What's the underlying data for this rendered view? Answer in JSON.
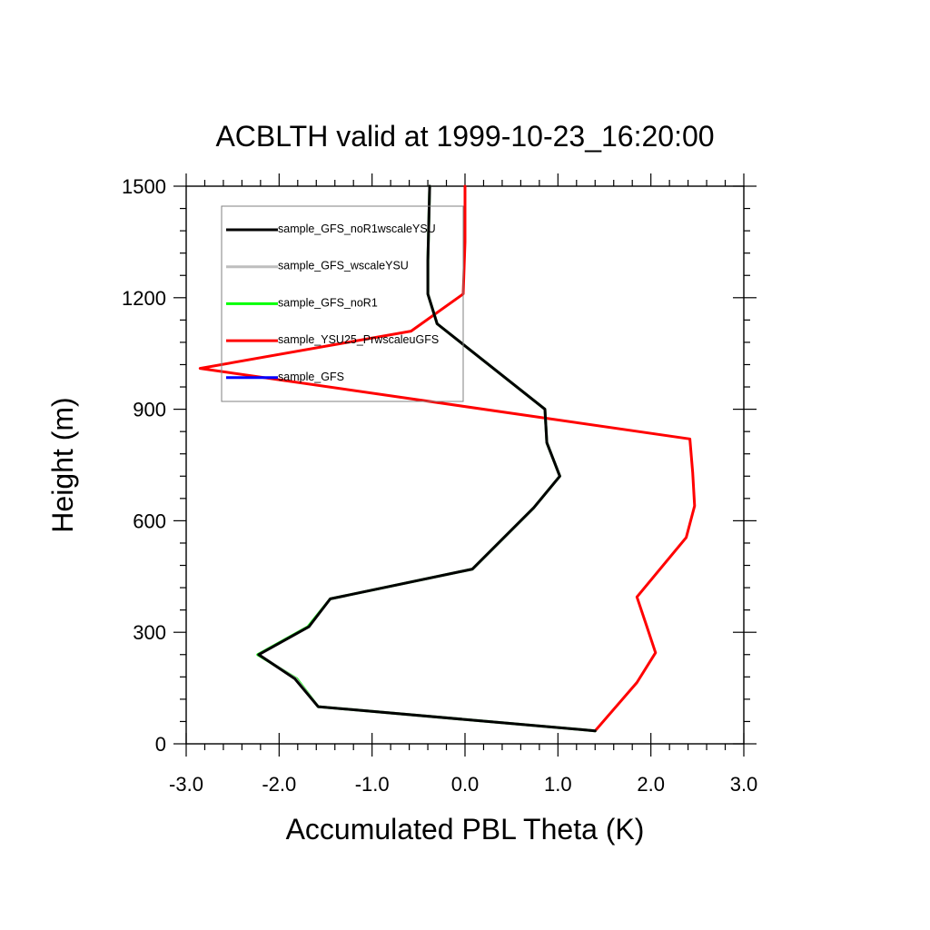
{
  "chart_data": {
    "type": "line",
    "title": "ACBLTH valid at 1999-10-23_16:20:00",
    "xlabel": "Accumulated PBL Theta (K)",
    "ylabel": "Height (m)",
    "xlim": [
      -3.0,
      3.0
    ],
    "ylim": [
      0,
      1500
    ],
    "x_ticks": [
      "-3.0",
      "-2.0",
      "-1.0",
      "0.0",
      "1.0",
      "2.0",
      "3.0"
    ],
    "y_ticks": [
      "0",
      "300",
      "600",
      "900",
      "1200",
      "1500"
    ],
    "legend_position": "top-left",
    "series": [
      {
        "name": "sample_GFS_noR1wscaleYSU",
        "color": "#000000",
        "points": [
          [
            1.4,
            35
          ],
          [
            -1.58,
            100
          ],
          [
            -1.83,
            175
          ],
          [
            -2.22,
            240
          ],
          [
            -1.68,
            315
          ],
          [
            -1.45,
            390
          ],
          [
            0.08,
            470
          ],
          [
            0.74,
            635
          ],
          [
            1.02,
            720
          ],
          [
            0.88,
            810
          ],
          [
            0.86,
            900
          ],
          [
            -0.3,
            1130
          ],
          [
            -0.4,
            1210
          ],
          [
            -0.4,
            1300
          ],
          [
            -0.38,
            1500
          ]
        ]
      },
      {
        "name": "sample_GFS_wscaleYSU",
        "color": "#bebebe",
        "points": [
          [
            1.4,
            35
          ],
          [
            -1.58,
            100
          ],
          [
            -1.82,
            175
          ],
          [
            -2.22,
            240
          ],
          [
            -1.68,
            315
          ],
          [
            -1.45,
            390
          ],
          [
            0.08,
            470
          ],
          [
            0.74,
            635
          ],
          [
            1.02,
            720
          ],
          [
            0.88,
            810
          ],
          [
            0.86,
            900
          ],
          [
            -0.3,
            1130
          ],
          [
            -0.4,
            1210
          ],
          [
            -0.4,
            1300
          ],
          [
            -0.38,
            1500
          ]
        ]
      },
      {
        "name": "sample_GFS_noR1",
        "color": "#00ff00",
        "points": [
          [
            1.4,
            35
          ],
          [
            -1.58,
            100
          ],
          [
            -1.81,
            175
          ],
          [
            -2.23,
            240
          ],
          [
            -1.69,
            315
          ],
          [
            -1.45,
            390
          ],
          [
            0.08,
            470
          ],
          [
            0.74,
            635
          ],
          [
            1.02,
            720
          ],
          [
            0.88,
            810
          ],
          [
            0.86,
            900
          ],
          [
            -0.3,
            1130
          ],
          [
            -0.4,
            1210
          ],
          [
            -0.4,
            1300
          ],
          [
            -0.38,
            1500
          ]
        ]
      },
      {
        "name": "sample_YSU25_PrwscaleuGFS",
        "color": "#ff0000",
        "points": [
          [
            1.4,
            35
          ],
          [
            1.85,
            165
          ],
          [
            2.05,
            245
          ],
          [
            1.95,
            320
          ],
          [
            1.85,
            395
          ],
          [
            2.38,
            555
          ],
          [
            2.47,
            640
          ],
          [
            2.45,
            730
          ],
          [
            2.42,
            820
          ],
          [
            -2.85,
            1010
          ],
          [
            -0.58,
            1110
          ],
          [
            -0.02,
            1210
          ],
          [
            0.0,
            1350
          ],
          [
            0.0,
            1500
          ]
        ]
      },
      {
        "name": "sample_GFS",
        "color": "#0000ff",
        "points": []
      }
    ]
  }
}
